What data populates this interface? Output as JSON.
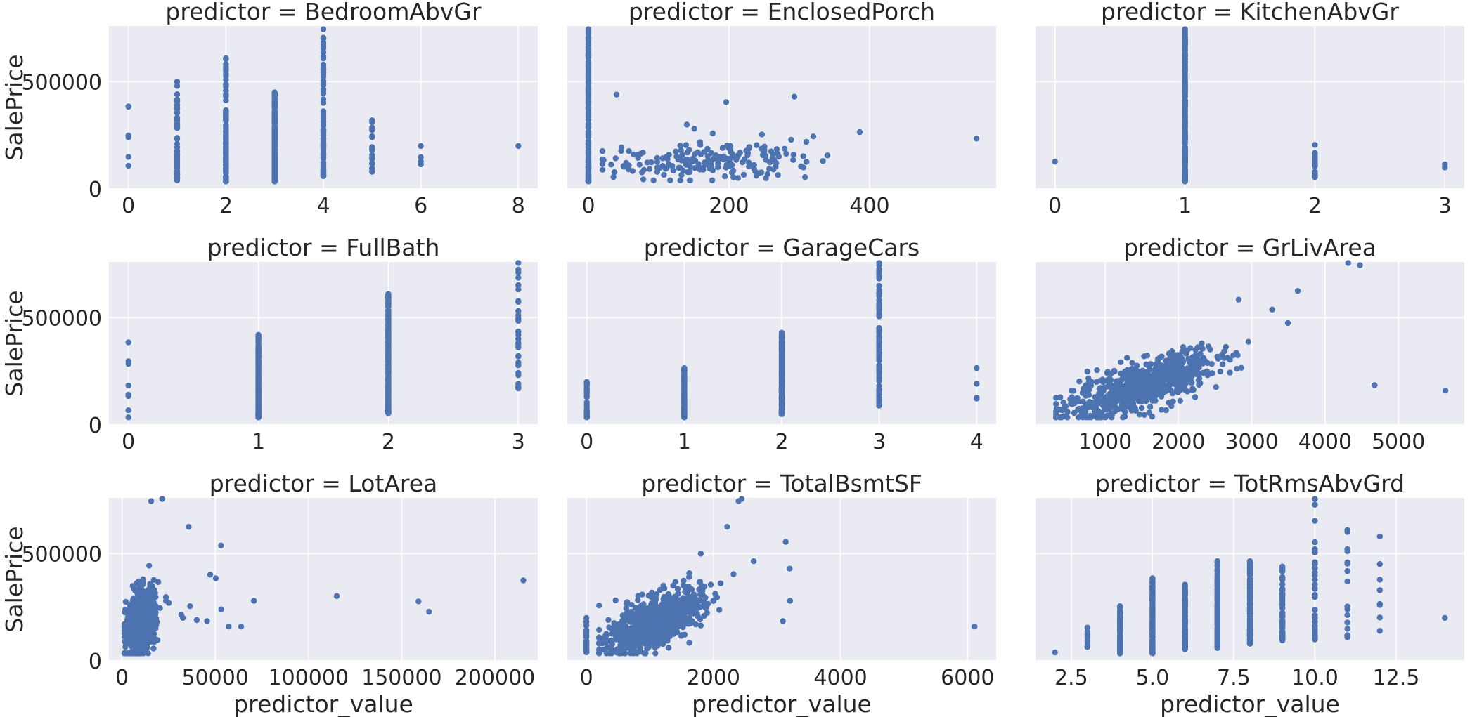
{
  "chart_data": {
    "type": "scatter",
    "layout": "facet-grid-3x3",
    "xlabel": "predictor_value",
    "ylabel": "SalePrice",
    "shared_y": {
      "ylim": [
        0,
        760000
      ],
      "ticks": [
        0,
        500000
      ],
      "tick_labels": [
        "0",
        "500000"
      ]
    },
    "marker_color": "#4C72B0",
    "background_color": "#EAEAF2",
    "grid": true,
    "panels": [
      {
        "title": "predictor = BedroomAbvGr",
        "xlim": [
          -0.4,
          8.4
        ],
        "xticks": [
          0,
          2,
          4,
          6,
          8
        ],
        "xtick_labels": [
          "0",
          "2",
          "4",
          "6",
          "8"
        ],
        "columns": [
          {
            "x": 0,
            "ymin": 108000,
            "ymax": 385000,
            "n": 6
          },
          {
            "x": 1,
            "ymin": 40000,
            "ymax": 500000,
            "n": 50
          },
          {
            "x": 2,
            "ymin": 35000,
            "ymax": 610000,
            "n": 120
          },
          {
            "x": 3,
            "ymin": 35000,
            "ymax": 450000,
            "n": 220
          },
          {
            "x": 4,
            "ymin": 60000,
            "ymax": 745000,
            "n": 120
          },
          {
            "x": 5,
            "ymin": 80000,
            "ymax": 320000,
            "n": 20
          },
          {
            "x": 6,
            "ymin": 115000,
            "ymax": 200000,
            "n": 5
          },
          {
            "x": 8,
            "ymin": 200000,
            "ymax": 200000,
            "n": 1
          }
        ]
      },
      {
        "title": "predictor = EnclosedPorch",
        "xlim": [
          -30,
          580
        ],
        "xticks": [
          0,
          200,
          400
        ],
        "xtick_labels": [
          "0",
          "200",
          "400"
        ],
        "columns": [
          {
            "x": 0,
            "ymin": 35000,
            "ymax": 745000,
            "n": 200
          }
        ],
        "cloud": {
          "n": 200,
          "xmean": 165,
          "xsd": 70,
          "xmin": 20,
          "xmax": 340,
          "ymean": 130000,
          "ysd": 40000,
          "ymin": 40000,
          "ymax": 330000,
          "rho": 0.1
        },
        "points": [
          [
            40,
            440000
          ],
          [
            196,
            405000
          ],
          [
            293,
            430000
          ],
          [
            386,
            265000
          ],
          [
            552,
            235000
          ],
          [
            320,
            245000
          ],
          [
            140,
            300000
          ]
        ]
      },
      {
        "title": "predictor = KitchenAbvGr",
        "xlim": [
          -0.15,
          3.15
        ],
        "xticks": [
          0,
          1,
          2,
          3
        ],
        "xtick_labels": [
          "0",
          "1",
          "2",
          "3"
        ],
        "columns": [
          {
            "x": 0,
            "ymin": 127000,
            "ymax": 127000,
            "n": 1
          },
          {
            "x": 1,
            "ymin": 35000,
            "ymax": 745000,
            "n": 300
          },
          {
            "x": 2,
            "ymin": 55000,
            "ymax": 205000,
            "n": 20
          },
          {
            "x": 3,
            "ymin": 100000,
            "ymax": 115000,
            "n": 2
          }
        ]
      },
      {
        "title": "predictor = FullBath",
        "xlim": [
          -0.15,
          3.15
        ],
        "xticks": [
          0,
          1,
          2,
          3
        ],
        "xtick_labels": [
          "0",
          "1",
          "2",
          "3"
        ],
        "columns": [
          {
            "x": 0,
            "ymin": 35000,
            "ymax": 385000,
            "n": 8
          },
          {
            "x": 1,
            "ymin": 35000,
            "ymax": 420000,
            "n": 200
          },
          {
            "x": 2,
            "ymin": 55000,
            "ymax": 610000,
            "n": 250
          },
          {
            "x": 3,
            "ymin": 170000,
            "ymax": 755000,
            "n": 30
          }
        ]
      },
      {
        "title": "predictor = GarageCars",
        "xlim": [
          -0.2,
          4.2
        ],
        "xticks": [
          0,
          1,
          2,
          3,
          4
        ],
        "xtick_labels": [
          "0",
          "1",
          "2",
          "3",
          "4"
        ],
        "columns": [
          {
            "x": 0,
            "ymin": 35000,
            "ymax": 200000,
            "n": 40
          },
          {
            "x": 1,
            "ymin": 35000,
            "ymax": 265000,
            "n": 150
          },
          {
            "x": 2,
            "ymin": 50000,
            "ymax": 430000,
            "n": 200
          },
          {
            "x": 3,
            "ymin": 90000,
            "ymax": 755000,
            "n": 120
          },
          {
            "x": 4,
            "ymin": 123000,
            "ymax": 265000,
            "n": 5
          }
        ]
      },
      {
        "title": "predictor = GrLivArea",
        "xlim": [
          50,
          5900
        ],
        "xticks": [
          1000,
          2000,
          3000,
          4000,
          5000
        ],
        "xtick_labels": [
          "1000",
          "2000",
          "3000",
          "4000",
          "5000"
        ],
        "cloud": {
          "n": 800,
          "xmean": 1500,
          "xsd": 500,
          "xmin": 330,
          "xmax": 3400,
          "ymean": 180000,
          "ysd": 75000,
          "ymin": 35000,
          "ymax": 600000,
          "rho": 0.72
        },
        "points": [
          [
            4316,
            755000
          ],
          [
            4476,
            745000
          ],
          [
            3627,
            625000
          ],
          [
            4676,
            185000
          ],
          [
            5642,
            160000
          ],
          [
            3493,
            475000
          ],
          [
            3279,
            538000
          ],
          [
            2822,
            584000
          ]
        ]
      },
      {
        "title": "predictor = LotArea",
        "xlim": [
          -7000,
          223000
        ],
        "xticks": [
          0,
          50000,
          100000,
          150000,
          200000
        ],
        "xtick_labels": [
          "0",
          "50000",
          "100000",
          "150000",
          "200000"
        ],
        "cloud": {
          "n": 900,
          "xmean": 10000,
          "xsd": 3800,
          "xmin": 1300,
          "xmax": 30000,
          "ymean": 180000,
          "ysd": 75000,
          "ymin": 35000,
          "ymax": 600000,
          "rho": 0.35
        },
        "points": [
          [
            21535,
            755000
          ],
          [
            15623,
            745000
          ],
          [
            35760,
            625000
          ],
          [
            53107,
            538000
          ],
          [
            215245,
            375000
          ],
          [
            164660,
            228950
          ],
          [
            159000,
            277000
          ],
          [
            115149,
            302000
          ],
          [
            70761,
            280000
          ],
          [
            57200,
            160000
          ],
          [
            63887,
            160000
          ],
          [
            47280,
            402000
          ],
          [
            50271,
            385000
          ],
          [
            53227,
            240000
          ],
          [
            32668,
            200000
          ],
          [
            40094,
            190000
          ],
          [
            45600,
            185000
          ],
          [
            25095,
            270000
          ],
          [
            31770,
            215000
          ],
          [
            36500,
            255000
          ]
        ]
      },
      {
        "title": "predictor = TotalBsmtSF",
        "xlim": [
          -300,
          6450
        ],
        "xticks": [
          0,
          2000,
          4000,
          6000
        ],
        "xtick_labels": [
          "0",
          "2000",
          "4000",
          "6000"
        ],
        "columns": [
          {
            "x": 0,
            "ymin": 40000,
            "ymax": 200000,
            "n": 30
          }
        ],
        "cloud": {
          "n": 800,
          "xmean": 1060,
          "xsd": 380,
          "xmin": 200,
          "xmax": 2400,
          "ymean": 180000,
          "ysd": 75000,
          "ymin": 35000,
          "ymax": 600000,
          "rho": 0.62
        },
        "points": [
          [
            2444,
            755000
          ],
          [
            2396,
            745000
          ],
          [
            2216,
            625000
          ],
          [
            6110,
            160000
          ],
          [
            3200,
            430000
          ],
          [
            3138,
            555000
          ],
          [
            3094,
            185000
          ],
          [
            3206,
            280000
          ],
          [
            2633,
            465000
          ],
          [
            1800,
            500000
          ]
        ]
      },
      {
        "title": "predictor = TotRmsAbvGrd",
        "xlim": [
          1.4,
          14.6
        ],
        "xticks": [
          2.5,
          5.0,
          7.5,
          10.0,
          12.5
        ],
        "xtick_labels": [
          "2.5",
          "5.0",
          "7.5",
          "10.0",
          "12.5"
        ],
        "columns": [
          {
            "x": 2,
            "ymin": 39000,
            "ymax": 39000,
            "n": 1
          },
          {
            "x": 3,
            "ymin": 65000,
            "ymax": 155000,
            "n": 15
          },
          {
            "x": 4,
            "ymin": 35000,
            "ymax": 255000,
            "n": 80
          },
          {
            "x": 5,
            "ymin": 35000,
            "ymax": 385000,
            "n": 150
          },
          {
            "x": 6,
            "ymin": 55000,
            "ymax": 355000,
            "n": 180
          },
          {
            "x": 7,
            "ymin": 60000,
            "ymax": 465000,
            "n": 180
          },
          {
            "x": 8,
            "ymin": 80000,
            "ymax": 465000,
            "n": 120
          },
          {
            "x": 9,
            "ymin": 95000,
            "ymax": 440000,
            "n": 70
          },
          {
            "x": 10,
            "ymin": 100000,
            "ymax": 755000,
            "n": 40
          },
          {
            "x": 11,
            "ymin": 110000,
            "ymax": 610000,
            "n": 18
          },
          {
            "x": 12,
            "ymin": 140000,
            "ymax": 580000,
            "n": 8
          },
          {
            "x": 14,
            "ymin": 200000,
            "ymax": 200000,
            "n": 1
          }
        ]
      }
    ]
  }
}
